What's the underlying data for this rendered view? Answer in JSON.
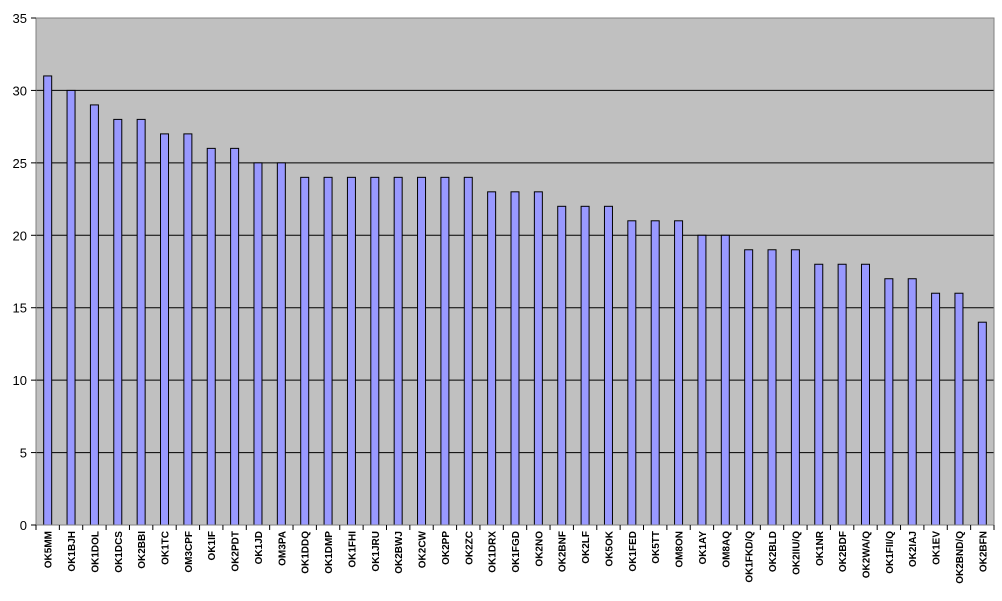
{
  "chart_data": {
    "type": "bar",
    "title": "",
    "xlabel": "",
    "ylabel": "",
    "ylim": [
      0,
      35
    ],
    "yticks": [
      0,
      5,
      10,
      15,
      20,
      25,
      30,
      35
    ],
    "grid": true,
    "legend": "none",
    "colors": {
      "plot_background": "#c0c0c0",
      "bar_fill": "#9999ff",
      "bar_stroke": "#000000",
      "gridline": "#000000"
    },
    "categories": [
      "OK5MM",
      "OK1BJH",
      "OK1DOL",
      "OK1DCS",
      "OK2BBI",
      "OK1TC",
      "OM3CPF",
      "OK1IF",
      "OK2PDT",
      "OK1JD",
      "OM3PA",
      "OK1DDQ",
      "OK1DMP",
      "OK1FHI",
      "OK1JRU",
      "OK2BWJ",
      "OK2CW",
      "OK2PP",
      "OK2ZC",
      "OK1DRX",
      "OK1FGD",
      "OK2NO",
      "OK2BNF",
      "OK2LF",
      "OK5OK",
      "OK1FED",
      "OK5TT",
      "OM8ON",
      "OK1AY",
      "OM8AQ",
      "OK1FKD/Q",
      "OK2BLD",
      "OK2IIU/Q",
      "OK1NR",
      "OK2BDF",
      "OK2WA/Q",
      "OK1FII/Q",
      "OK2IAJ",
      "OK1EV",
      "OK2BND/Q",
      "OK2BFN"
    ],
    "values": [
      31,
      30,
      29,
      28,
      28,
      27,
      27,
      26,
      26,
      25,
      25,
      24,
      24,
      24,
      24,
      24,
      24,
      24,
      24,
      23,
      23,
      23,
      22,
      22,
      22,
      21,
      21,
      21,
      20,
      20,
      19,
      19,
      19,
      18,
      18,
      18,
      17,
      17,
      16,
      16,
      14
    ]
  }
}
